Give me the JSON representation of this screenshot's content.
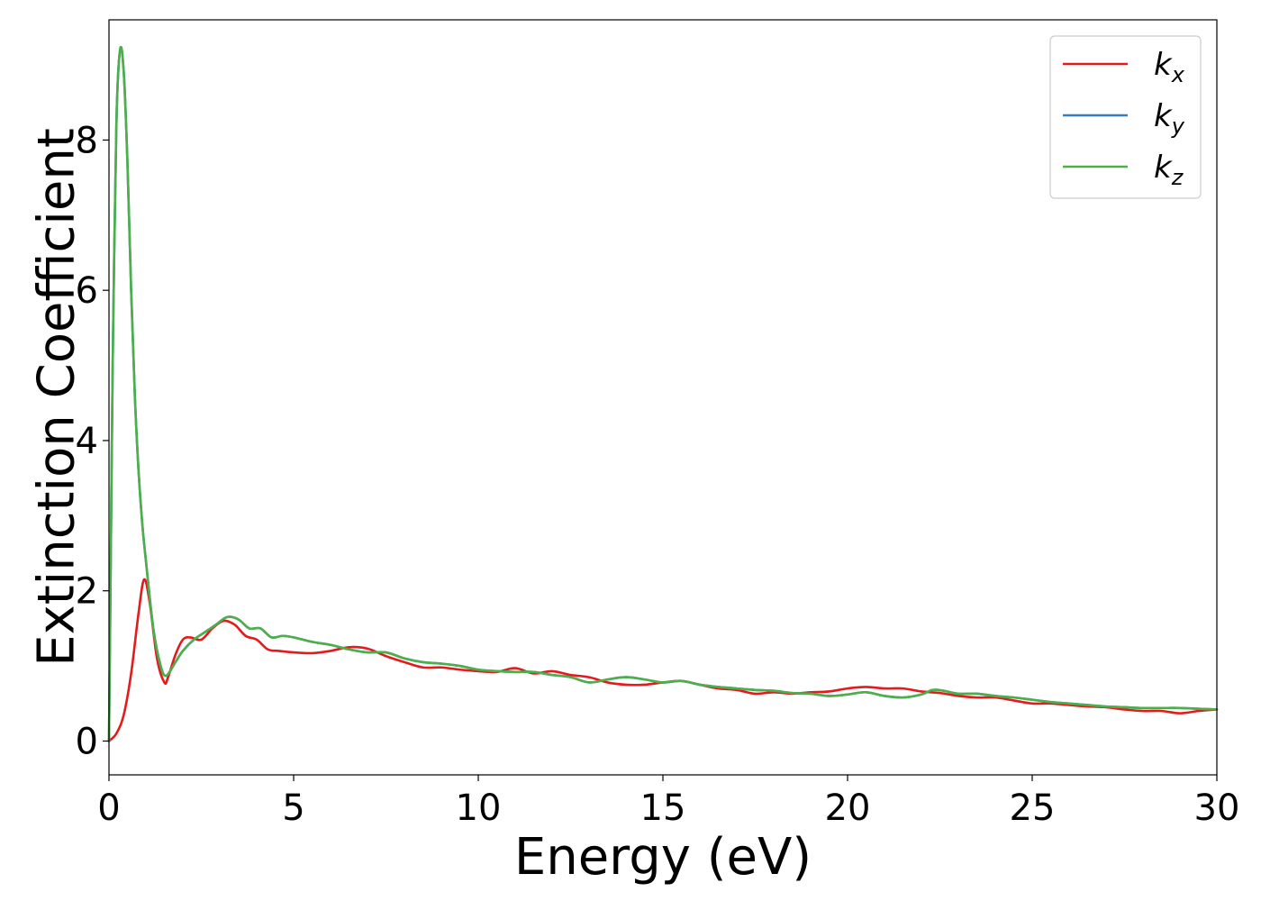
{
  "chart_data": {
    "type": "line",
    "xlabel": "Energy (eV)",
    "ylabel": "Extinction Coefficient",
    "xlim": [
      0,
      30
    ],
    "ylim": [
      -0.45,
      9.6
    ],
    "xticks": [
      0,
      5,
      10,
      15,
      20,
      25,
      30
    ],
    "yticks": [
      0,
      2,
      4,
      6,
      8
    ],
    "xtick_labels": [
      "0",
      "5",
      "10",
      "15",
      "20",
      "25",
      "30"
    ],
    "ytick_labels": [
      "0",
      "2",
      "4",
      "6",
      "8"
    ],
    "grid": false,
    "legend_position": "top-right",
    "series": [
      {
        "name": "k",
        "subscript": "x",
        "color": "#e41a1c",
        "x": [
          0,
          0.2,
          0.4,
          0.6,
          0.8,
          0.95,
          1.1,
          1.3,
          1.5,
          1.6,
          1.8,
          2.0,
          2.2,
          2.5,
          2.8,
          3.1,
          3.4,
          3.7,
          4.0,
          4.3,
          4.6,
          5.0,
          5.5,
          6.0,
          6.5,
          7.0,
          7.5,
          8.0,
          8.5,
          9.0,
          9.5,
          10.0,
          10.5,
          11.0,
          11.5,
          12.0,
          12.5,
          13.0,
          13.5,
          14.0,
          14.5,
          15.0,
          15.5,
          16.0,
          16.5,
          17.0,
          17.5,
          18.0,
          18.5,
          19.0,
          19.5,
          20.0,
          20.5,
          21.0,
          21.5,
          22.0,
          22.5,
          23.0,
          23.5,
          24.0,
          24.5,
          25.0,
          25.5,
          26.0,
          26.5,
          27.0,
          27.5,
          28.0,
          28.5,
          29.0,
          29.5,
          30.0
        ],
        "y": [
          0.0,
          0.1,
          0.35,
          0.9,
          1.7,
          2.15,
          1.85,
          1.1,
          0.78,
          0.85,
          1.15,
          1.35,
          1.38,
          1.35,
          1.5,
          1.6,
          1.55,
          1.4,
          1.35,
          1.22,
          1.2,
          1.18,
          1.17,
          1.2,
          1.25,
          1.23,
          1.13,
          1.05,
          0.98,
          0.98,
          0.95,
          0.93,
          0.92,
          0.97,
          0.9,
          0.93,
          0.88,
          0.85,
          0.78,
          0.75,
          0.75,
          0.78,
          0.8,
          0.75,
          0.7,
          0.68,
          0.63,
          0.65,
          0.63,
          0.65,
          0.66,
          0.7,
          0.72,
          0.7,
          0.7,
          0.66,
          0.64,
          0.6,
          0.58,
          0.58,
          0.54,
          0.5,
          0.5,
          0.48,
          0.46,
          0.45,
          0.42,
          0.4,
          0.4,
          0.37,
          0.4,
          0.42
        ]
      },
      {
        "name": "k",
        "subscript": "y",
        "color": "#377eb8",
        "x": [
          0,
          0.05,
          0.1,
          0.2,
          0.3,
          0.4,
          0.5,
          0.6,
          0.7,
          0.8,
          0.9,
          1.0,
          1.2,
          1.4,
          1.55,
          1.8,
          2.0,
          2.3,
          2.6,
          2.9,
          3.2,
          3.5,
          3.8,
          4.1,
          4.4,
          4.7,
          5.0,
          5.5,
          6.0,
          6.5,
          7.0,
          7.5,
          8.0,
          8.5,
          9.0,
          9.5,
          10.0,
          10.5,
          11.0,
          11.5,
          12.0,
          12.5,
          13.0,
          13.5,
          14.0,
          14.5,
          15.0,
          15.5,
          16.0,
          16.5,
          17.0,
          17.5,
          18.0,
          18.5,
          19.0,
          19.5,
          20.0,
          20.5,
          21.0,
          21.5,
          22.0,
          22.3,
          22.6,
          23.0,
          23.5,
          24.0,
          24.5,
          25.0,
          25.5,
          26.0,
          26.5,
          27.0,
          27.5,
          28.0,
          28.5,
          29.0,
          29.5,
          30.0
        ],
        "y": [
          0.0,
          2.5,
          5.0,
          8.2,
          9.2,
          8.9,
          7.7,
          6.0,
          4.6,
          3.6,
          2.9,
          2.4,
          1.5,
          1.0,
          0.87,
          1.05,
          1.2,
          1.35,
          1.45,
          1.55,
          1.65,
          1.62,
          1.5,
          1.5,
          1.38,
          1.4,
          1.38,
          1.32,
          1.28,
          1.22,
          1.18,
          1.18,
          1.1,
          1.05,
          1.03,
          1.0,
          0.95,
          0.93,
          0.92,
          0.92,
          0.88,
          0.85,
          0.78,
          0.82,
          0.85,
          0.82,
          0.78,
          0.8,
          0.75,
          0.72,
          0.7,
          0.68,
          0.67,
          0.64,
          0.63,
          0.6,
          0.62,
          0.65,
          0.6,
          0.58,
          0.62,
          0.68,
          0.67,
          0.63,
          0.63,
          0.6,
          0.58,
          0.55,
          0.52,
          0.5,
          0.48,
          0.46,
          0.45,
          0.44,
          0.44,
          0.44,
          0.43,
          0.42
        ]
      },
      {
        "name": "k",
        "subscript": "z",
        "color": "#4daf4a",
        "x": [
          0,
          0.05,
          0.1,
          0.2,
          0.3,
          0.4,
          0.5,
          0.6,
          0.7,
          0.8,
          0.9,
          1.0,
          1.2,
          1.4,
          1.55,
          1.8,
          2.0,
          2.3,
          2.6,
          2.9,
          3.2,
          3.5,
          3.8,
          4.1,
          4.4,
          4.7,
          5.0,
          5.5,
          6.0,
          6.5,
          7.0,
          7.5,
          8.0,
          8.5,
          9.0,
          9.5,
          10.0,
          10.5,
          11.0,
          11.5,
          12.0,
          12.5,
          13.0,
          13.5,
          14.0,
          14.5,
          15.0,
          15.5,
          16.0,
          16.5,
          17.0,
          17.5,
          18.0,
          18.5,
          19.0,
          19.5,
          20.0,
          20.5,
          21.0,
          21.5,
          22.0,
          22.3,
          22.6,
          23.0,
          23.5,
          24.0,
          24.5,
          25.0,
          25.5,
          26.0,
          26.5,
          27.0,
          27.5,
          28.0,
          28.5,
          29.0,
          29.5,
          30.0
        ],
        "y": [
          0.0,
          2.5,
          5.0,
          8.2,
          9.2,
          8.9,
          7.7,
          6.0,
          4.6,
          3.6,
          2.9,
          2.4,
          1.5,
          1.0,
          0.87,
          1.05,
          1.2,
          1.35,
          1.45,
          1.55,
          1.65,
          1.62,
          1.5,
          1.5,
          1.38,
          1.4,
          1.38,
          1.32,
          1.28,
          1.22,
          1.18,
          1.18,
          1.1,
          1.05,
          1.03,
          1.0,
          0.95,
          0.93,
          0.92,
          0.92,
          0.88,
          0.85,
          0.78,
          0.82,
          0.85,
          0.82,
          0.78,
          0.8,
          0.75,
          0.72,
          0.7,
          0.68,
          0.67,
          0.64,
          0.63,
          0.6,
          0.62,
          0.65,
          0.6,
          0.58,
          0.62,
          0.68,
          0.67,
          0.63,
          0.63,
          0.6,
          0.58,
          0.55,
          0.52,
          0.5,
          0.48,
          0.46,
          0.45,
          0.44,
          0.44,
          0.44,
          0.43,
          0.42
        ]
      }
    ]
  }
}
